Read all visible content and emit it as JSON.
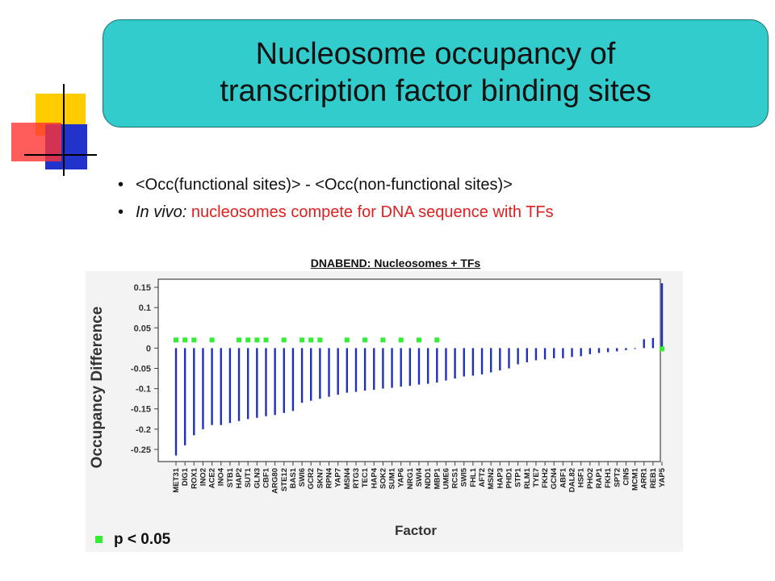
{
  "slide": {
    "title_line1": "Nucleosome occupancy of",
    "title_line2": "transcription factor binding sites",
    "bullet1": "<Occ(functional sites)> - <Occ(non-functional sites)>",
    "bullet2_italic": "In vivo:",
    "bullet2_text": "nucleosomes compete for DNA sequence with TFs",
    "legend_label": "p < 0.05",
    "colors": {
      "title_bg": "#33cccc",
      "bars": "#1f2fbf",
      "marks": "#33ee33",
      "red_text": "#e02020"
    }
  },
  "chart_data": {
    "type": "bar",
    "title": "DNABEND: Nucleosomes + TFs",
    "xlabel": "Factor",
    "ylabel": "Occupancy Difference",
    "ylim": [
      -0.28,
      0.17
    ],
    "yticks": [
      "0.15",
      "0.1",
      "0.05",
      "0",
      "-0.05",
      "-0.1",
      "-0.15",
      "-0.2",
      "-0.25"
    ],
    "categories": [
      "MET31",
      "DIG1",
      "ROX1",
      "INO2",
      "ACE2",
      "INO4",
      "STB1",
      "HAP2",
      "SUT1",
      "GLN3",
      "CBF1",
      "ARG80",
      "STE12",
      "BAS1",
      "SWI6",
      "GCR2",
      "SKN7",
      "RPN4",
      "YAP7",
      "MSN4",
      "RTG3",
      "TEC1",
      "HAP4",
      "SOK2",
      "SUM1",
      "YAP6",
      "NRG1",
      "SWI4",
      "NDD1",
      "MBP1",
      "UME6",
      "RCS1",
      "SWI5",
      "FHL1",
      "AFT2",
      "MSN2",
      "HAP3",
      "PHD1",
      "STP1",
      "RLM1",
      "TYE7",
      "FKH2",
      "GCN4",
      "ABF1",
      "DAL82",
      "HSF1",
      "PHO2",
      "RAP1",
      "FKH1",
      "SPT2",
      "CIN5",
      "MCM1",
      "ARR1",
      "REB1",
      "YAP5"
    ],
    "values": [
      -0.265,
      -0.24,
      -0.215,
      -0.2,
      -0.19,
      -0.19,
      -0.185,
      -0.18,
      -0.175,
      -0.172,
      -0.168,
      -0.165,
      -0.16,
      -0.155,
      -0.135,
      -0.13,
      -0.125,
      -0.12,
      -0.115,
      -0.11,
      -0.108,
      -0.105,
      -0.103,
      -0.1,
      -0.098,
      -0.095,
      -0.093,
      -0.09,
      -0.088,
      -0.085,
      -0.08,
      -0.075,
      -0.07,
      -0.068,
      -0.065,
      -0.06,
      -0.055,
      -0.05,
      -0.04,
      -0.035,
      -0.03,
      -0.028,
      -0.025,
      -0.025,
      -0.022,
      -0.02,
      -0.015,
      -0.012,
      -0.01,
      -0.008,
      -0.005,
      -0.002,
      0.022,
      0.025,
      0.16
    ],
    "significant": [
      true,
      true,
      true,
      false,
      true,
      false,
      false,
      true,
      true,
      true,
      true,
      false,
      true,
      false,
      true,
      true,
      true,
      false,
      false,
      true,
      false,
      true,
      false,
      true,
      false,
      true,
      false,
      true,
      false,
      true,
      false,
      false,
      false,
      false,
      false,
      false,
      false,
      false,
      false,
      false,
      false,
      false,
      false,
      false,
      false,
      false,
      false,
      false,
      false,
      false,
      false,
      false,
      false,
      false,
      true
    ],
    "grid": false,
    "legend": "bottom-left"
  }
}
